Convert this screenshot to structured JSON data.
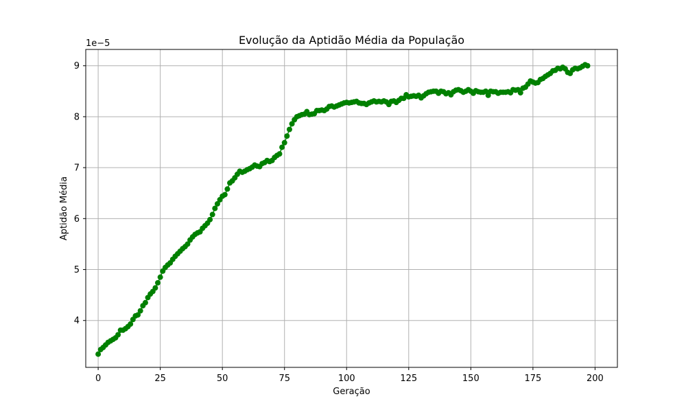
{
  "chart_data": {
    "type": "line",
    "title": "Evolução da Aptidão Média da População",
    "xlabel": "Geração",
    "ylabel": "Aptidão Média",
    "y_offset_text": "1e−5",
    "y_scale_factor": 1e-05,
    "xlim": [
      -5,
      209
    ],
    "ylim": [
      3.08,
      9.32
    ],
    "xticks": [
      0,
      25,
      50,
      75,
      100,
      125,
      150,
      175,
      200
    ],
    "xtick_labels": [
      "0",
      "25",
      "50",
      "75",
      "100",
      "125",
      "150",
      "175",
      "200"
    ],
    "yticks": [
      4,
      5,
      6,
      7,
      8,
      9
    ],
    "ytick_labels": [
      "4",
      "5",
      "6",
      "7",
      "8",
      "9"
    ],
    "grid": true,
    "legend": "none",
    "series": [
      {
        "color": "#008000",
        "marker": "circle",
        "x_start": 0,
        "x_step": 1,
        "values": [
          3.34,
          3.43,
          3.47,
          3.52,
          3.57,
          3.6,
          3.63,
          3.66,
          3.72,
          3.81,
          3.81,
          3.84,
          3.88,
          3.93,
          4.02,
          4.09,
          4.11,
          4.19,
          4.29,
          4.35,
          4.45,
          4.52,
          4.57,
          4.64,
          4.74,
          4.85,
          4.97,
          5.04,
          5.09,
          5.13,
          5.2,
          5.26,
          5.31,
          5.36,
          5.41,
          5.45,
          5.5,
          5.58,
          5.64,
          5.69,
          5.72,
          5.74,
          5.81,
          5.86,
          5.91,
          5.98,
          6.08,
          6.2,
          6.29,
          6.37,
          6.44,
          6.47,
          6.58,
          6.7,
          6.74,
          6.8,
          6.87,
          6.93,
          6.91,
          6.93,
          6.96,
          6.98,
          7.01,
          7.05,
          7.03,
          7.02,
          7.08,
          7.1,
          7.14,
          7.12,
          7.14,
          7.2,
          7.24,
          7.27,
          7.4,
          7.49,
          7.62,
          7.75,
          7.86,
          7.94,
          8.0,
          8.02,
          8.04,
          8.05,
          8.1,
          8.04,
          8.05,
          8.06,
          8.12,
          8.12,
          8.13,
          8.12,
          8.15,
          8.2,
          8.21,
          8.19,
          8.21,
          8.23,
          8.25,
          8.27,
          8.28,
          8.27,
          8.28,
          8.29,
          8.3,
          8.27,
          8.26,
          8.26,
          8.24,
          8.27,
          8.29,
          8.31,
          8.29,
          8.3,
          8.29,
          8.31,
          8.29,
          8.24,
          8.3,
          8.31,
          8.28,
          8.32,
          8.36,
          8.36,
          8.43,
          8.39,
          8.4,
          8.41,
          8.4,
          8.42,
          8.37,
          8.41,
          8.45,
          8.48,
          8.49,
          8.5,
          8.5,
          8.46,
          8.5,
          8.49,
          8.45,
          8.47,
          8.43,
          8.49,
          8.52,
          8.53,
          8.51,
          8.48,
          8.5,
          8.53,
          8.5,
          8.46,
          8.51,
          8.49,
          8.48,
          8.48,
          8.5,
          8.42,
          8.5,
          8.49,
          8.49,
          8.46,
          8.48,
          8.48,
          8.48,
          8.49,
          8.47,
          8.53,
          8.52,
          8.53,
          8.47,
          8.56,
          8.58,
          8.64,
          8.7,
          8.68,
          8.66,
          8.67,
          8.73,
          8.75,
          8.79,
          8.82,
          8.85,
          8.9,
          8.91,
          8.95,
          8.94,
          8.97,
          8.94,
          8.87,
          8.85,
          8.92,
          8.95,
          8.94,
          8.96,
          8.99,
          9.02,
          9.0
        ]
      }
    ]
  }
}
